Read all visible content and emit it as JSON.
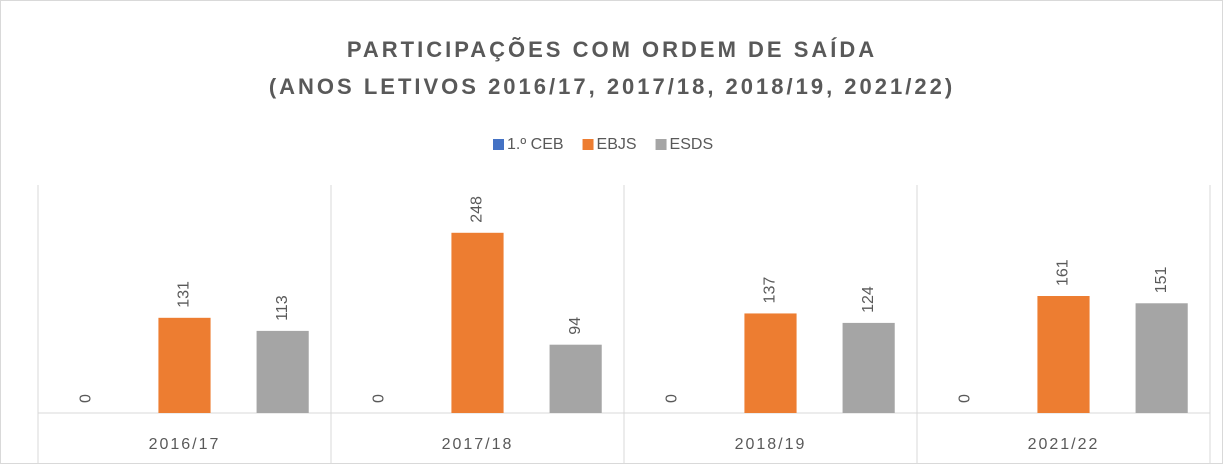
{
  "chart_data": {
    "type": "bar",
    "title": "PARTICIPAÇÕES COM ORDEM DE SAÍDA",
    "subtitle": "(ANOS LETIVOS 2016/17, 2017/18, 2018/19, 2021/22)",
    "categories": [
      "2016/17",
      "2017/18",
      "2018/19",
      "2021/22"
    ],
    "series": [
      {
        "name": "1.º CEB",
        "color": "#4472c4",
        "values": [
          0,
          0,
          0,
          0
        ]
      },
      {
        "name": "EBJS",
        "color": "#ed7d31",
        "values": [
          131,
          248,
          137,
          161
        ]
      },
      {
        "name": "ESDS",
        "color": "#a5a5a5",
        "values": [
          113,
          94,
          124,
          151
        ]
      }
    ],
    "ylim": [
      0,
      300
    ],
    "legend": "top"
  }
}
